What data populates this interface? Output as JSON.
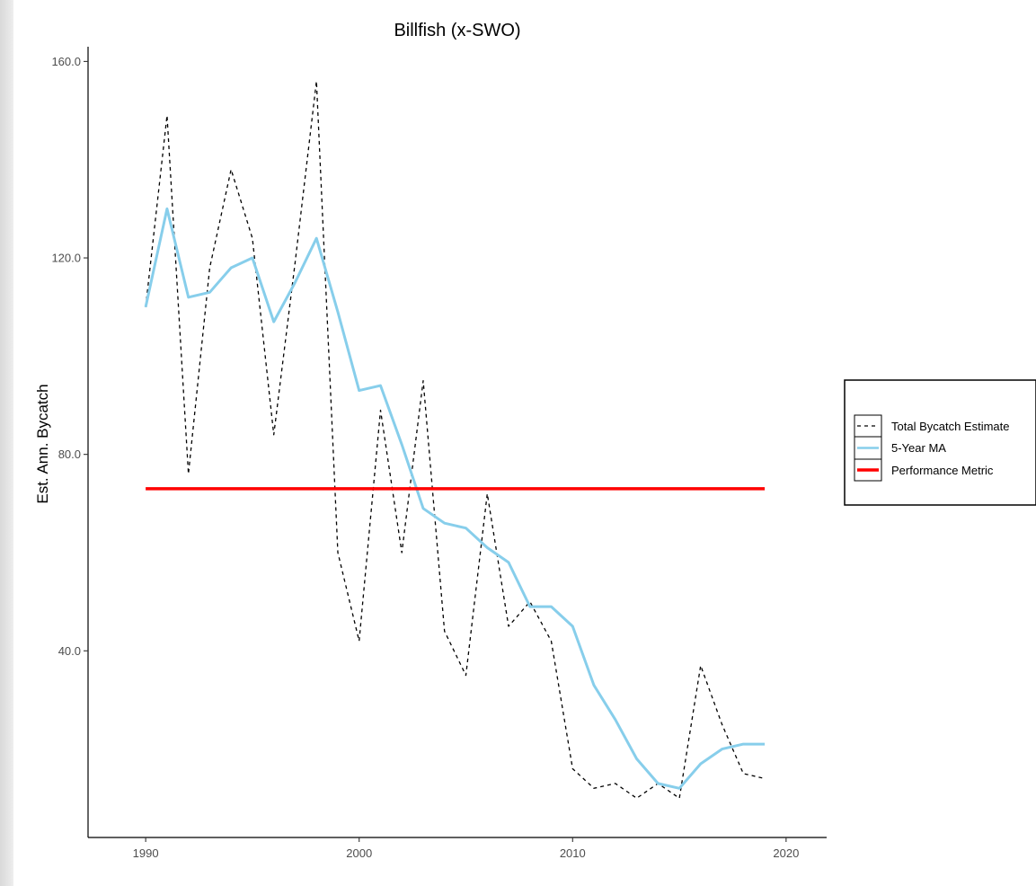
{
  "colors": {
    "total_bycatch": "#000000",
    "moving_average": "#87ceeb",
    "performance_metric": "#ff0000"
  },
  "legend": {
    "placement": "right",
    "items": [
      {
        "label": "Total Bycatch Estimate",
        "color": "#000000",
        "style": "dashed"
      },
      {
        "label": "5-Year MA",
        "color": "#87ceeb",
        "style": "solid"
      },
      {
        "label": "Performance Metric",
        "color": "#ff0000",
        "style": "solid-thick"
      }
    ]
  },
  "chart_data": {
    "type": "line",
    "title": "Billfish (x-SWO)",
    "xlabel": "",
    "ylabel": "Est. Ann. Bycatch",
    "xlim": [
      1987.3,
      2021.9
    ],
    "ylim": [
      2,
      163
    ],
    "xticks": [
      1990,
      2000,
      2010,
      2020
    ],
    "xtick_labels": [
      "1990",
      "2000",
      "2010",
      "2020"
    ],
    "yticks": [
      40,
      80,
      120,
      160
    ],
    "ytick_labels": [
      "40.0",
      "80.0",
      "120.0",
      "160.0"
    ],
    "grid": false,
    "x": [
      1990,
      1991,
      1992,
      1993,
      1994,
      1995,
      1996,
      1997,
      1998,
      1999,
      2000,
      2001,
      2002,
      2003,
      2004,
      2005,
      2006,
      2007,
      2008,
      2009,
      2010,
      2011,
      2012,
      2013,
      2014,
      2015,
      2016,
      2017,
      2018,
      2019
    ],
    "series": [
      {
        "name": "Total Bycatch Estimate",
        "values": [
          110,
          149,
          76,
          118,
          138,
          124,
          84,
          119,
          156,
          60,
          42,
          89,
          60,
          95,
          44,
          35,
          72,
          45,
          50,
          42,
          16,
          12,
          13,
          10,
          13,
          10,
          37,
          25,
          15,
          14
        ]
      },
      {
        "name": "5-Year MA",
        "values": [
          110,
          130,
          112,
          113,
          118,
          120,
          107,
          115,
          124,
          109,
          93,
          94,
          82,
          69,
          66,
          65,
          61,
          58,
          49,
          49,
          45,
          33,
          26,
          18,
          13,
          12,
          17,
          20,
          21,
          21
        ]
      },
      {
        "name": "Performance Metric",
        "values": [
          73,
          73,
          73,
          73,
          73,
          73,
          73,
          73,
          73,
          73,
          73,
          73,
          73,
          73,
          73,
          73,
          73,
          73,
          73,
          73,
          73,
          73,
          73,
          73,
          73,
          73,
          73,
          73,
          73,
          73
        ]
      }
    ]
  }
}
